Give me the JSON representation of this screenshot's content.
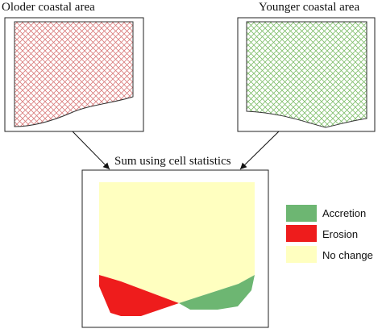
{
  "labels": {
    "older": "Oloder coastal area",
    "younger": "Younger coastal area",
    "sum": "Sum using cell statistics"
  },
  "legend": [
    {
      "label": "Accretion",
      "color": "#6db672"
    },
    {
      "label": "Erosion",
      "color": "#ee1c1c"
    },
    {
      "label": "No change",
      "color": "#ffffc0"
    }
  ],
  "colors": {
    "older_hatch": "#d97b7b",
    "younger_hatch": "#7fbe6a",
    "no_change": "#ffffc0",
    "erosion": "#ee1c1c",
    "accretion": "#6db672"
  }
}
